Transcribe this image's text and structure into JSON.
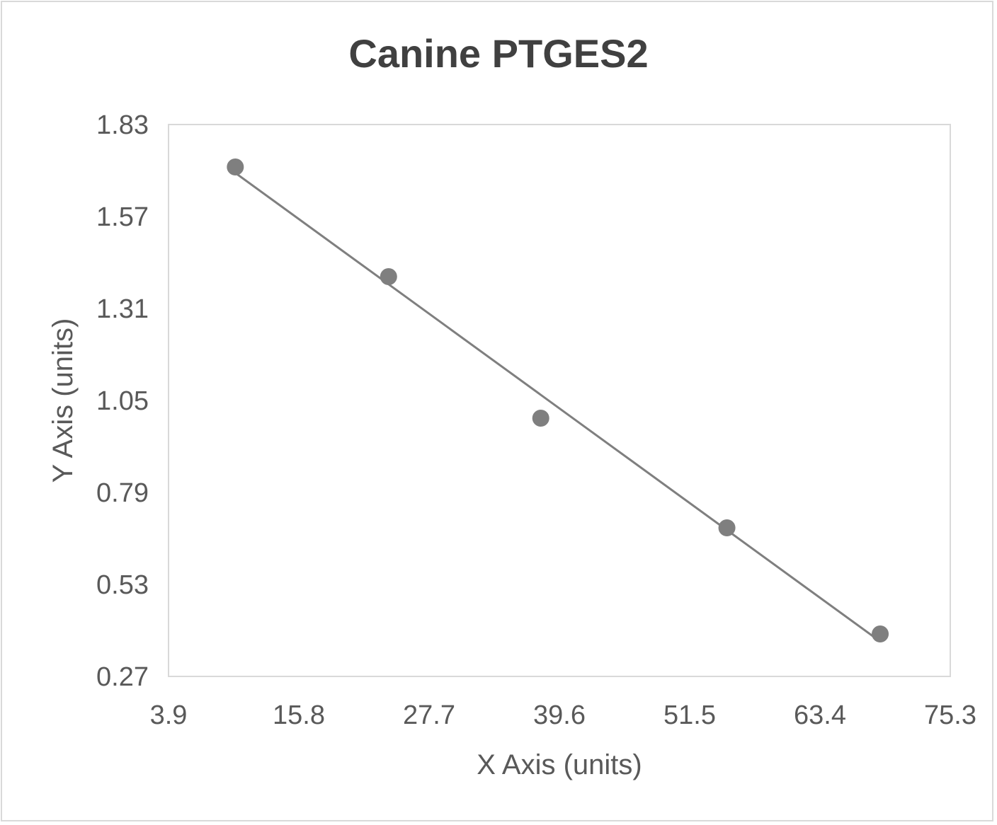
{
  "chart_data": {
    "type": "scatter",
    "title": "Canine PTGES2",
    "xlabel": "X Axis (units)",
    "ylabel": "Y Axis (units)",
    "xlim": [
      3.9,
      75.3
    ],
    "ylim": [
      0.27,
      1.83
    ],
    "xticks": [
      "3.9",
      "15.8",
      "27.7",
      "39.6",
      "51.5",
      "63.4",
      "75.3"
    ],
    "yticks": [
      "1.83",
      "1.57",
      "1.31",
      "1.05",
      "0.79",
      "0.53",
      "0.27"
    ],
    "grid": false,
    "trendline": "linear",
    "colors": {
      "points": "#7f7f7f",
      "trendline": "#7f7f7f",
      "plot_border": "#d9d9d9"
    },
    "points": [
      {
        "x": 10.0,
        "y": 1.71
      },
      {
        "x": 24.0,
        "y": 1.4
      },
      {
        "x": 37.9,
        "y": 1.0
      },
      {
        "x": 54.9,
        "y": 0.69
      },
      {
        "x": 68.9,
        "y": 0.39
      }
    ]
  }
}
